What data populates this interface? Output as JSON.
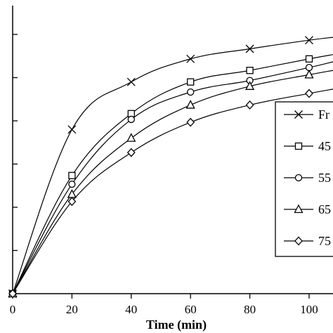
{
  "chart_data": {
    "type": "line",
    "xlabel": "Time (min)",
    "ylabel": "",
    "xlim": [
      0,
      110
    ],
    "ylim": [
      0,
      100
    ],
    "x_ticks": [
      0,
      20,
      40,
      60,
      80,
      100
    ],
    "y_ticks": [
      0,
      15,
      30,
      45,
      60,
      75,
      90
    ],
    "x": [
      0,
      20,
      40,
      60,
      80,
      100
    ],
    "series": [
      {
        "name": "Fr",
        "marker": "x",
        "values": [
          0,
          57.0,
          73.5,
          81.5,
          85.0,
          88.0
        ],
        "values_end": 89.0
      },
      {
        "name": "45",
        "marker": "square",
        "values": [
          0,
          41.0,
          62.5,
          73.5,
          77.5,
          81.5
        ],
        "values_end": 83.0
      },
      {
        "name": "55",
        "marker": "circle",
        "values": [
          0,
          38.0,
          60.5,
          70.0,
          74.0,
          78.5
        ],
        "values_end": 80.5
      },
      {
        "name": "65",
        "marker": "triangle",
        "values": [
          0,
          34.5,
          54.0,
          65.5,
          72.0,
          76.0
        ],
        "values_end": 77.5
      },
      {
        "name": "75",
        "marker": "diamond",
        "values": [
          0,
          32.0,
          49.0,
          59.5,
          65.5,
          69.5
        ],
        "values_end": 71.0
      }
    ],
    "legend_position": "right",
    "grid": false
  }
}
